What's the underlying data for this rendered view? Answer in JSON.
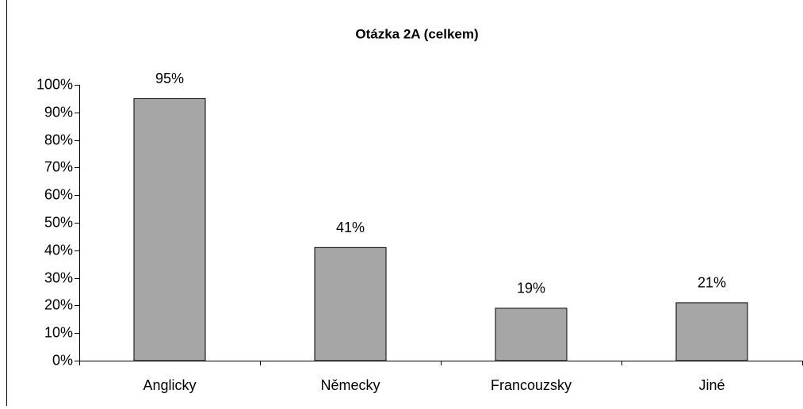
{
  "chart_data": {
    "type": "bar",
    "title": "Otázka 2A (celkem)",
    "categories": [
      "Anglicky",
      "Německy",
      "Francouzsky",
      "Jiné"
    ],
    "values": [
      95,
      41,
      19,
      21
    ],
    "value_labels": [
      "95%",
      "41%",
      "19%",
      "21%"
    ],
    "color": "#a6a6a6",
    "ylim": [
      0,
      100
    ],
    "yticks": [
      {
        "value": 0,
        "label": "0%"
      },
      {
        "value": 10,
        "label": "10%"
      },
      {
        "value": 20,
        "label": "20%"
      },
      {
        "value": 30,
        "label": "30%"
      },
      {
        "value": 40,
        "label": "40%"
      },
      {
        "value": 50,
        "label": "50%"
      },
      {
        "value": 60,
        "label": "60%"
      },
      {
        "value": 70,
        "label": "70%"
      },
      {
        "value": 80,
        "label": "80%"
      },
      {
        "value": 90,
        "label": "90%"
      },
      {
        "value": 100,
        "label": "100%"
      }
    ],
    "grid": false
  }
}
